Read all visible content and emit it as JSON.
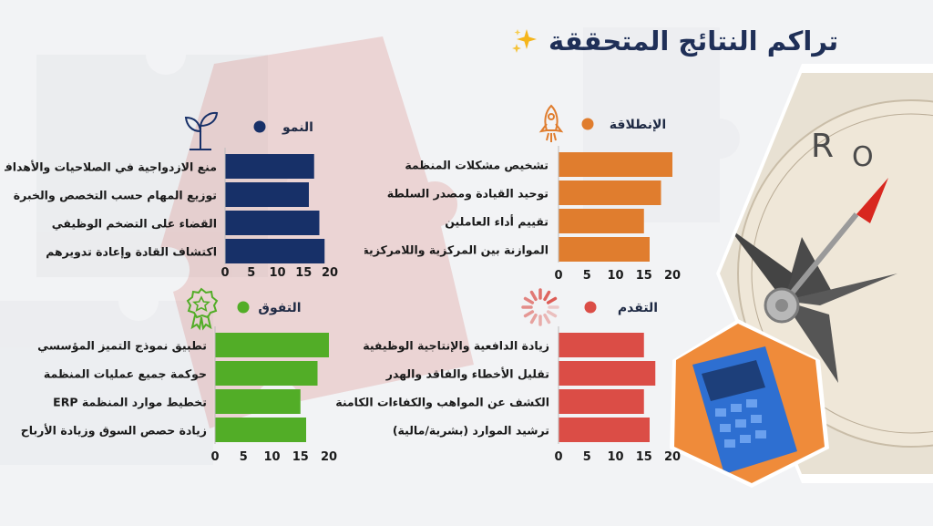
{
  "title": "تراكم النتائج المتحققة",
  "title_icon": "sparkles-icon",
  "chart_data": [
    {
      "type": "bar",
      "orientation": "horizontal",
      "title": "الإنطلاقة",
      "color": "#e07d2e",
      "icon": "rocket-icon",
      "categories": [
        "تشخيص مشكلات المنظمة",
        "توحيد القيادة ومصدر السلطة",
        "تقييم أداء العاملين",
        "الموازنة بين المركزية واللامركزية"
      ],
      "values": [
        20,
        18,
        15,
        16
      ],
      "xticks": [
        "0",
        "5",
        "10",
        "15",
        "20"
      ],
      "xlim": [
        0,
        20
      ]
    },
    {
      "type": "bar",
      "orientation": "horizontal",
      "title": "النمو",
      "color": "#173068",
      "icon": "plant-icon",
      "categories": [
        "منع الازدواجية في الصلاحيات والأهداف",
        "توزيع المهام حسب التخصص والخبرة",
        "القضاء على التضخم الوظيفي",
        "اكتشاف القادة وإعادة تدويرهم"
      ],
      "values": [
        17,
        16,
        18,
        19
      ],
      "xticks": [
        "0",
        "5",
        "10",
        "15",
        "20"
      ],
      "xlim": [
        0,
        20
      ]
    },
    {
      "type": "bar",
      "orientation": "horizontal",
      "title": "التقدم",
      "color": "#db4d46",
      "icon": "loading-icon",
      "categories": [
        "زيادة الدافعية والإنتاجية الوظيفية",
        "تقليل الأخطاء والفاقد والهدر",
        "الكشف عن المواهب والكفاءات الكامنة",
        "ترشيد الموارد (بشرية/مالية)"
      ],
      "values": [
        15,
        17,
        15,
        16
      ],
      "xticks": [
        "0",
        "5",
        "10",
        "15",
        "20"
      ],
      "xlim": [
        0,
        20
      ]
    },
    {
      "type": "bar",
      "orientation": "horizontal",
      "title": "التفوق",
      "color": "#52ad27",
      "icon": "award-badge-icon",
      "categories": [
        "تطبيق نموذج التميز المؤسسي",
        "حوكمة جميع عمليات المنظمة",
        "تخطيط موارد المنظمة ERP",
        "زيادة حصص السوق وزيادة الأرباح"
      ],
      "values": [
        20,
        18,
        15,
        16
      ],
      "xticks": [
        "0",
        "5",
        "10",
        "15",
        "20"
      ],
      "xlim": [
        0,
        20
      ]
    }
  ]
}
